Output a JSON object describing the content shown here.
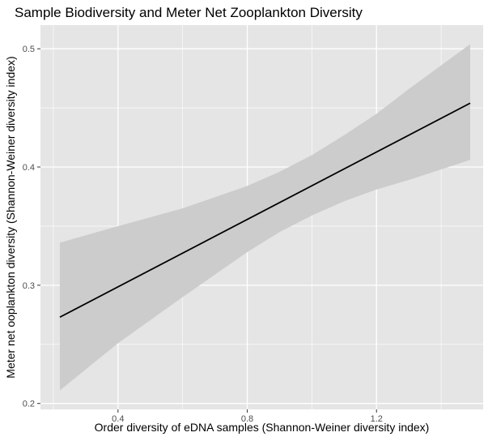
{
  "chart_data": {
    "type": "line",
    "title": "Sample Biodiversity and Meter Net Zooplankton Diversity",
    "xlabel": "Order diversity of eDNA samples (Shannon-Weiner diversity index)",
    "ylabel": "Meter net ooplankton diversity (Shannon-Weiner diversity index)",
    "xlim": [
      0.16,
      1.53
    ],
    "ylim": [
      0.195,
      0.52
    ],
    "x_ticks": [
      0.4,
      0.8,
      1.2
    ],
    "x_tick_labels": [
      "0.4",
      "0.8",
      "1.2"
    ],
    "y_ticks": [
      0.2,
      0.3,
      0.4,
      0.5
    ],
    "y_tick_labels": [
      "0.2",
      "0.3",
      "0.4",
      "0.5"
    ],
    "grid": true,
    "colors": {
      "panel": "#e5e5e5",
      "grid": "#ffffff",
      "ribbon": "#cccccc",
      "line": "#000000"
    },
    "series": [
      {
        "type": "line",
        "x": [
          0.22,
          1.49
        ],
        "y": [
          0.273,
          0.454
        ]
      },
      {
        "type": "ribbon",
        "x": [
          0.22,
          0.4,
          0.6,
          0.8,
          0.9,
          1.0,
          1.1,
          1.2,
          1.3,
          1.49
        ],
        "lower": [
          0.211,
          0.251,
          0.29,
          0.328,
          0.345,
          0.359,
          0.371,
          0.381,
          0.389,
          0.406
        ],
        "upper": [
          0.336,
          0.35,
          0.365,
          0.384,
          0.396,
          0.41,
          0.427,
          0.445,
          0.466,
          0.504
        ]
      }
    ]
  }
}
